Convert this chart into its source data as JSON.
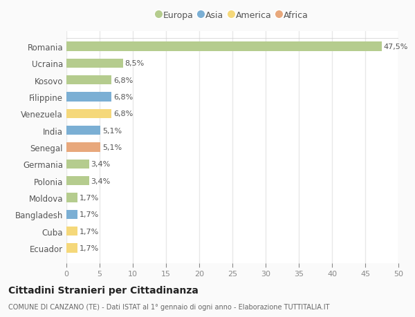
{
  "categories": [
    "Romania",
    "Ucraina",
    "Kosovo",
    "Filippine",
    "Venezuela",
    "India",
    "Senegal",
    "Germania",
    "Polonia",
    "Moldova",
    "Bangladesh",
    "Cuba",
    "Ecuador"
  ],
  "values": [
    47.5,
    8.5,
    6.8,
    6.8,
    6.8,
    5.1,
    5.1,
    3.4,
    3.4,
    1.7,
    1.7,
    1.7,
    1.7
  ],
  "labels": [
    "47,5%",
    "8,5%",
    "6,8%",
    "6,8%",
    "6,8%",
    "5,1%",
    "5,1%",
    "3,4%",
    "3,4%",
    "1,7%",
    "1,7%",
    "1,7%",
    "1,7%"
  ],
  "continent": [
    "Europa",
    "Europa",
    "Europa",
    "Asia",
    "America",
    "Asia",
    "Africa",
    "Europa",
    "Europa",
    "Europa",
    "Asia",
    "America",
    "America"
  ],
  "colors": {
    "Europa": "#b5cc8e",
    "Asia": "#7bafd4",
    "America": "#f5d87a",
    "Africa": "#e8a87c"
  },
  "legend_order": [
    "Europa",
    "Asia",
    "America",
    "Africa"
  ],
  "title": "Cittadini Stranieri per Cittadinanza",
  "subtitle": "COMUNE DI CANZANO (TE) - Dati ISTAT al 1° gennaio di ogni anno - Elaborazione TUTTITALIA.IT",
  "xlim": [
    0,
    50
  ],
  "xticks": [
    0,
    5,
    10,
    15,
    20,
    25,
    30,
    35,
    40,
    45,
    50
  ],
  "background_color": "#fafafa",
  "plot_bg_color": "#ffffff",
  "grid_color": "#e8e8e8"
}
